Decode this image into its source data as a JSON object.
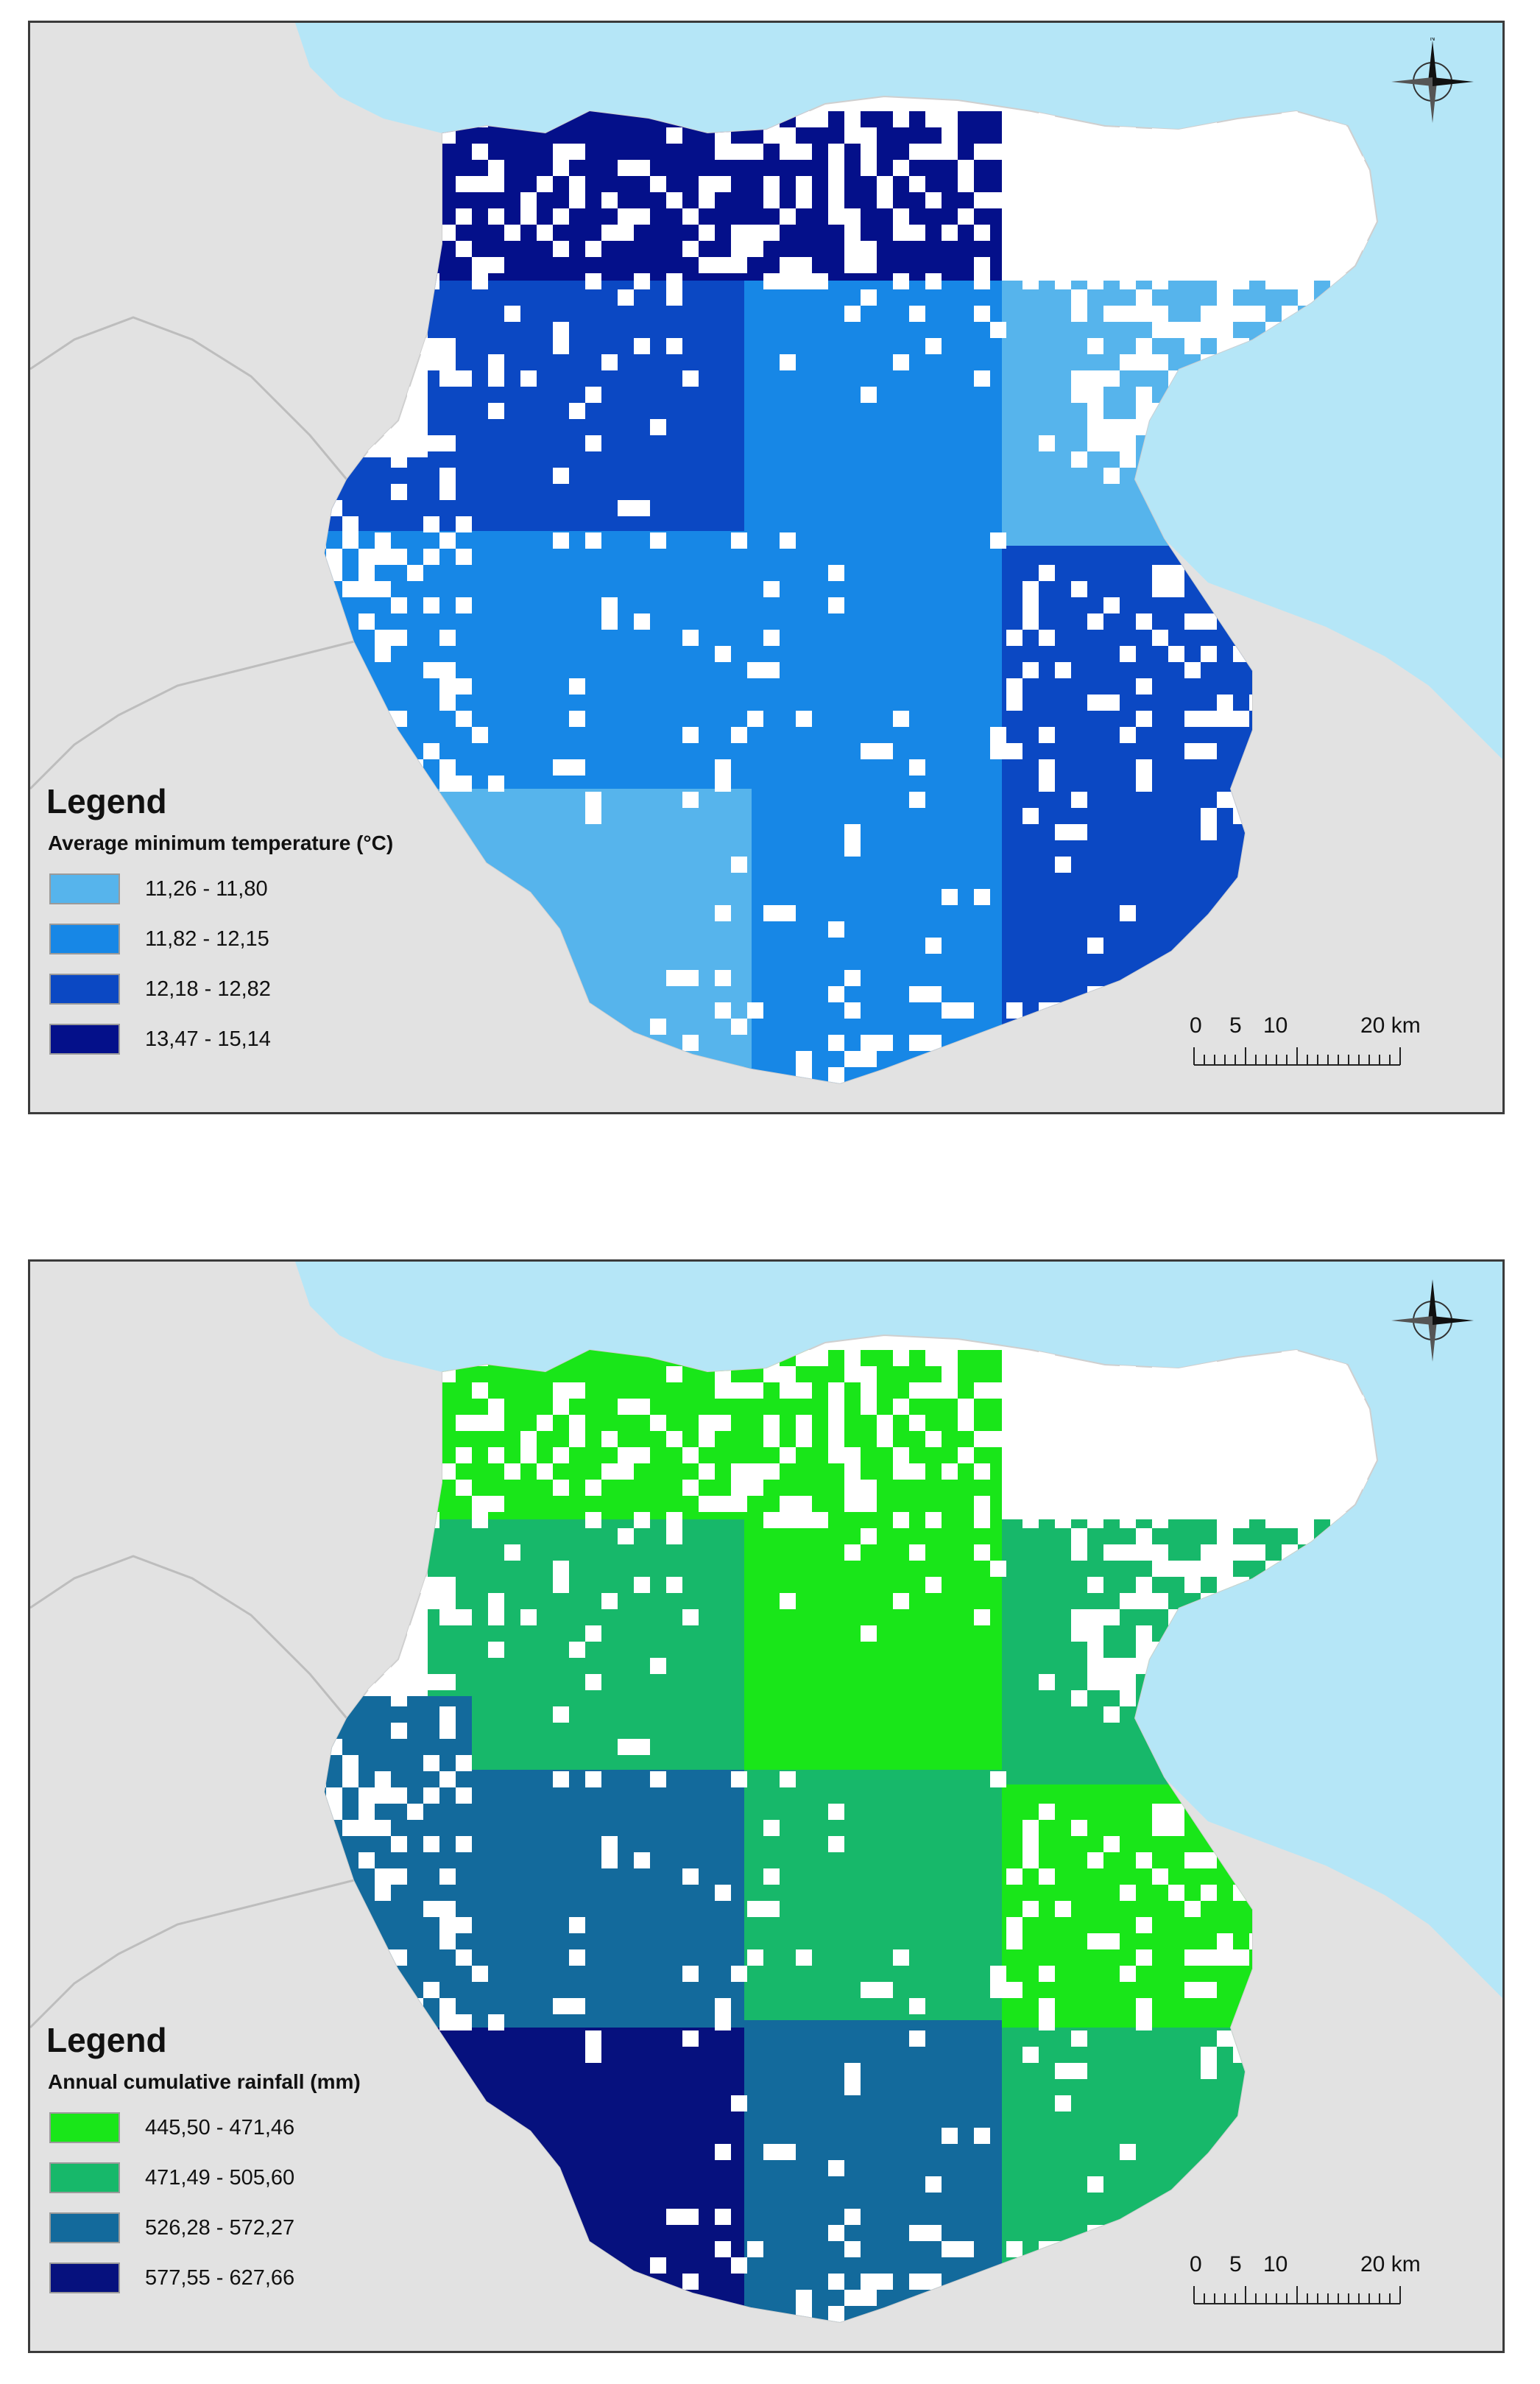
{
  "colors": {
    "sea": "#b5e6f7",
    "land": "#e2e2e2",
    "region_white": "#ffffff"
  },
  "maps": [
    {
      "legend_title": "Legend",
      "legend_subtitle": "Average minimum temperature (°C)",
      "classes": [
        {
          "label": "11,26 - 11,80",
          "color": "#56b4ec"
        },
        {
          "label": "11,82 - 12,15",
          "color": "#1787e6"
        },
        {
          "label": "12,18 - 12,82",
          "color": "#0b48c3"
        },
        {
          "label": "13,47 - 15,14",
          "color": "#04108a"
        }
      ],
      "scale": {
        "labels": [
          "0",
          "5",
          "10",
          "20 km"
        ]
      },
      "compass_icon": "north-arrow-icon"
    },
    {
      "legend_title": "Legend",
      "legend_subtitle": "Annual cumulative rainfall (mm)",
      "classes": [
        {
          "label": "445,50 - 471,46",
          "color": "#19e619"
        },
        {
          "label": "471,49 - 505,60",
          "color": "#17b86a"
        },
        {
          "label": "526,28 - 572,27",
          "color": "#136a9c"
        },
        {
          "label": "577,55 - 627,66",
          "color": "#06117e"
        }
      ],
      "scale": {
        "labels": [
          "0",
          "5",
          "10",
          "20 km"
        ]
      },
      "compass_icon": "north-arrow-icon"
    }
  ]
}
